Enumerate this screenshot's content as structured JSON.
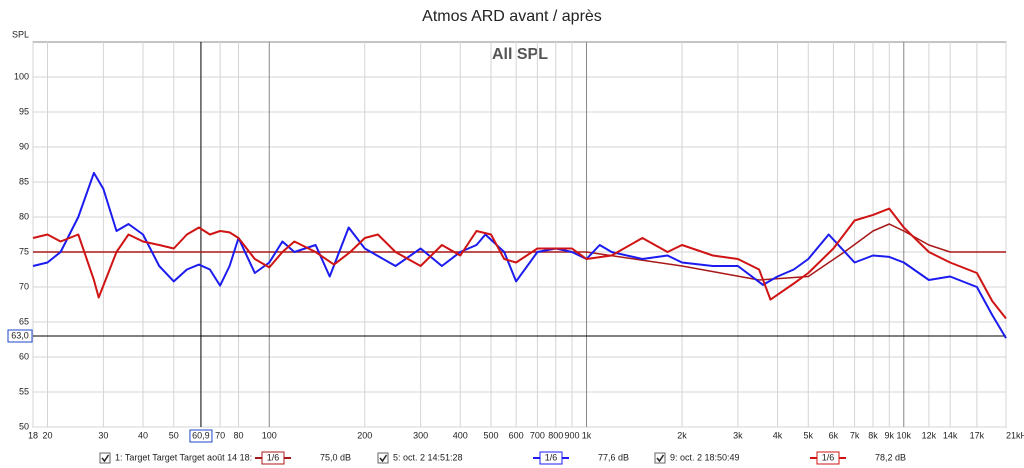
{
  "chart_data": {
    "type": "line",
    "title": "Atmos ARD avant / après",
    "subtitle": "All SPL",
    "ylabel": "SPL",
    "xscale": "log",
    "grid": true,
    "xlim": [
      18,
      21000
    ],
    "ylim": [
      50,
      105
    ],
    "xticks": [
      18,
      20,
      30,
      40,
      50,
      70,
      80,
      100,
      200,
      300,
      400,
      500,
      600,
      700,
      800,
      900,
      {
        "value": 1000,
        "label": "1k"
      },
      {
        "value": 2000,
        "label": "2k"
      },
      {
        "value": 3000,
        "label": "3k"
      },
      {
        "value": 4000,
        "label": "4k"
      },
      {
        "value": 5000,
        "label": "5k"
      },
      {
        "value": 6000,
        "label": "6k"
      },
      {
        "value": 7000,
        "label": "7k"
      },
      {
        "value": 8000,
        "label": "8k"
      },
      {
        "value": 9000,
        "label": "9k"
      },
      {
        "value": 10000,
        "label": "10k"
      },
      {
        "value": 12000,
        "label": "12k"
      },
      {
        "value": 14000,
        "label": "14k"
      },
      {
        "value": 17000,
        "label": "17k"
      },
      {
        "value": 21000,
        "label": "21kHz"
      }
    ],
    "yticks": [
      50,
      55,
      60,
      65,
      70,
      75,
      80,
      85,
      90,
      95,
      100
    ],
    "cursor_x": {
      "value": 60.9,
      "label": "60,9"
    },
    "cursor_y": {
      "value": 63,
      "label": "63,0"
    },
    "series": [
      {
        "name": "1: Target Target Target août 14 18:",
        "color": "#a81818",
        "smoothing": "1/6",
        "level": "75,0 dB",
        "x": [
          18,
          1000,
          2000,
          3500,
          5000,
          6500,
          8000,
          9000,
          10000,
          12000,
          14000,
          21000
        ],
        "values": [
          75,
          75,
          73,
          71,
          71.5,
          75,
          78,
          79,
          78,
          76,
          75,
          75
        ]
      },
      {
        "name": "5: oct. 2 14:51:28",
        "color": "#1c1cf0",
        "smoothing": "1/6",
        "level": "77,6 dB",
        "x": [
          18,
          20,
          22,
          25,
          28,
          30,
          33,
          36,
          40,
          45,
          50,
          55,
          60,
          65,
          70,
          75,
          80,
          90,
          100,
          110,
          120,
          140,
          155,
          178,
          200,
          250,
          300,
          350,
          400,
          450,
          480,
          550,
          600,
          700,
          800,
          900,
          1000,
          1100,
          1200,
          1500,
          1800,
          2000,
          2500,
          3000,
          3600,
          4000,
          4500,
          5000,
          5800,
          7000,
          8000,
          9000,
          10000,
          12000,
          14000,
          17000,
          19000,
          21000
        ],
        "values": [
          73,
          73.5,
          75,
          80,
          86.3,
          84,
          78,
          79,
          77.5,
          73,
          70.8,
          72.5,
          73.2,
          72.5,
          70.2,
          73,
          77,
          72,
          73.5,
          76.5,
          75,
          76,
          71.5,
          78.5,
          75.5,
          73,
          75.5,
          73,
          75,
          76,
          77.5,
          75,
          70.8,
          75,
          75.5,
          75,
          74,
          76,
          75,
          74,
          74.5,
          73.5,
          73,
          73,
          70.3,
          71.5,
          72.5,
          74,
          77.5,
          73.5,
          74.5,
          74.3,
          73.5,
          71,
          71.5,
          70,
          66,
          62.7
        ]
      },
      {
        "name": "9: oct. 2 18:50:49",
        "color": "#d01414",
        "smoothing": "1/6",
        "level": "78,2 dB",
        "x": [
          18,
          20,
          22,
          25,
          28,
          29,
          33,
          36,
          40,
          45,
          50,
          55,
          60,
          65,
          70,
          75,
          80,
          90,
          100,
          110,
          120,
          140,
          160,
          180,
          200,
          220,
          250,
          300,
          350,
          400,
          450,
          500,
          550,
          600,
          700,
          800,
          900,
          1000,
          1200,
          1500,
          1800,
          2000,
          2500,
          3000,
          3500,
          3800,
          4500,
          5000,
          6000,
          7000,
          8000,
          9000,
          10000,
          12000,
          14000,
          17000,
          19000,
          21000
        ],
        "values": [
          77,
          77.5,
          76.5,
          77.5,
          71,
          68.5,
          75,
          77.5,
          76.5,
          76,
          75.5,
          77.5,
          78.5,
          77.5,
          78,
          77.8,
          77,
          74,
          72.8,
          75,
          76.5,
          75,
          73.2,
          75,
          77,
          77.5,
          75,
          73,
          76,
          74.5,
          78,
          77.5,
          74,
          73.5,
          75.5,
          75.5,
          75.5,
          74,
          74.5,
          77,
          75,
          76,
          74.5,
          74,
          72.5,
          68.2,
          70.5,
          72,
          75.5,
          79.5,
          80.3,
          81.2,
          78.5,
          75,
          73.5,
          72,
          68,
          65.5
        ]
      }
    ]
  }
}
